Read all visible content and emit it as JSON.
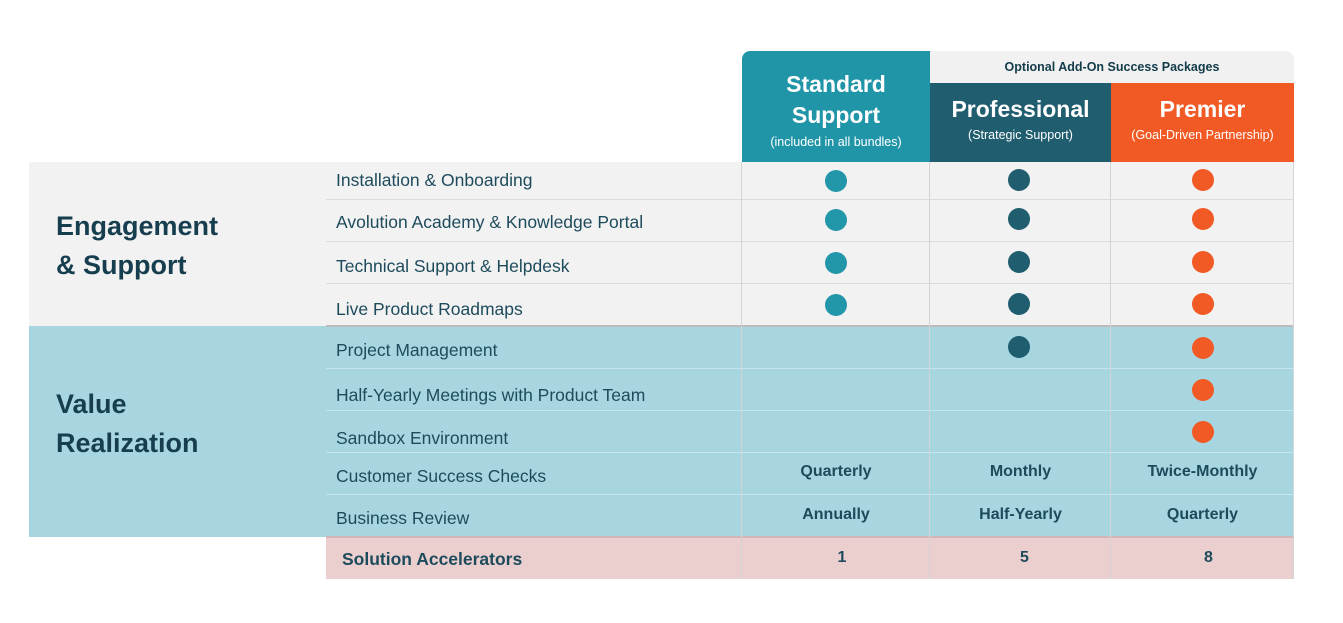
{
  "header": {
    "standard": {
      "title_line1": "Standard",
      "title_line2": "Support",
      "subtitle": "(included in all bundles)"
    },
    "optional_label": "Optional Add-On Success Packages",
    "professional": {
      "title": "Professional",
      "subtitle": "(Strategic Support)"
    },
    "premier": {
      "title": "Premier",
      "subtitle": "(Goal-Driven Partnership)"
    }
  },
  "sections": {
    "engagement": {
      "line1": "Engagement",
      "line2": "& Support"
    },
    "value": {
      "line1": "Value",
      "line2": "Realization"
    }
  },
  "rows": [
    {
      "label": "Installation & Onboarding",
      "standard": "dot",
      "professional": "dot",
      "premier": "dot"
    },
    {
      "label": "Avolution Academy & Knowledge Portal",
      "standard": "dot",
      "professional": "dot",
      "premier": "dot"
    },
    {
      "label": "Technical Support & Helpdesk",
      "standard": "dot",
      "professional": "dot",
      "premier": "dot"
    },
    {
      "label": "Live Product Roadmaps",
      "standard": "dot",
      "professional": "dot",
      "premier": "dot"
    },
    {
      "label": "Project Management",
      "standard": "",
      "professional": "dot",
      "premier": "dot"
    },
    {
      "label": "Half-Yearly Meetings with Product Team",
      "standard": "",
      "professional": "",
      "premier": "dot"
    },
    {
      "label": "Sandbox Environment",
      "standard": "",
      "professional": "",
      "premier": "dot"
    },
    {
      "label": "Customer Success Checks",
      "standard": "Quarterly",
      "professional": "Monthly",
      "premier": "Twice-Monthly"
    },
    {
      "label": "Business Review",
      "standard": "Annually",
      "professional": "Half-Yearly",
      "premier": "Quarterly"
    }
  ],
  "footer_row": {
    "label": "Solution Accelerators",
    "standard": "1",
    "professional": "5",
    "premier": "8"
  },
  "colors": {
    "standard": "#2397aa",
    "professional": "#1f5d6f",
    "premier": "#f15a24",
    "engagement_bg": "#f2f2f2",
    "value_bg": "#a8d6e0",
    "accelerators_bg": "#ebcfcf"
  }
}
